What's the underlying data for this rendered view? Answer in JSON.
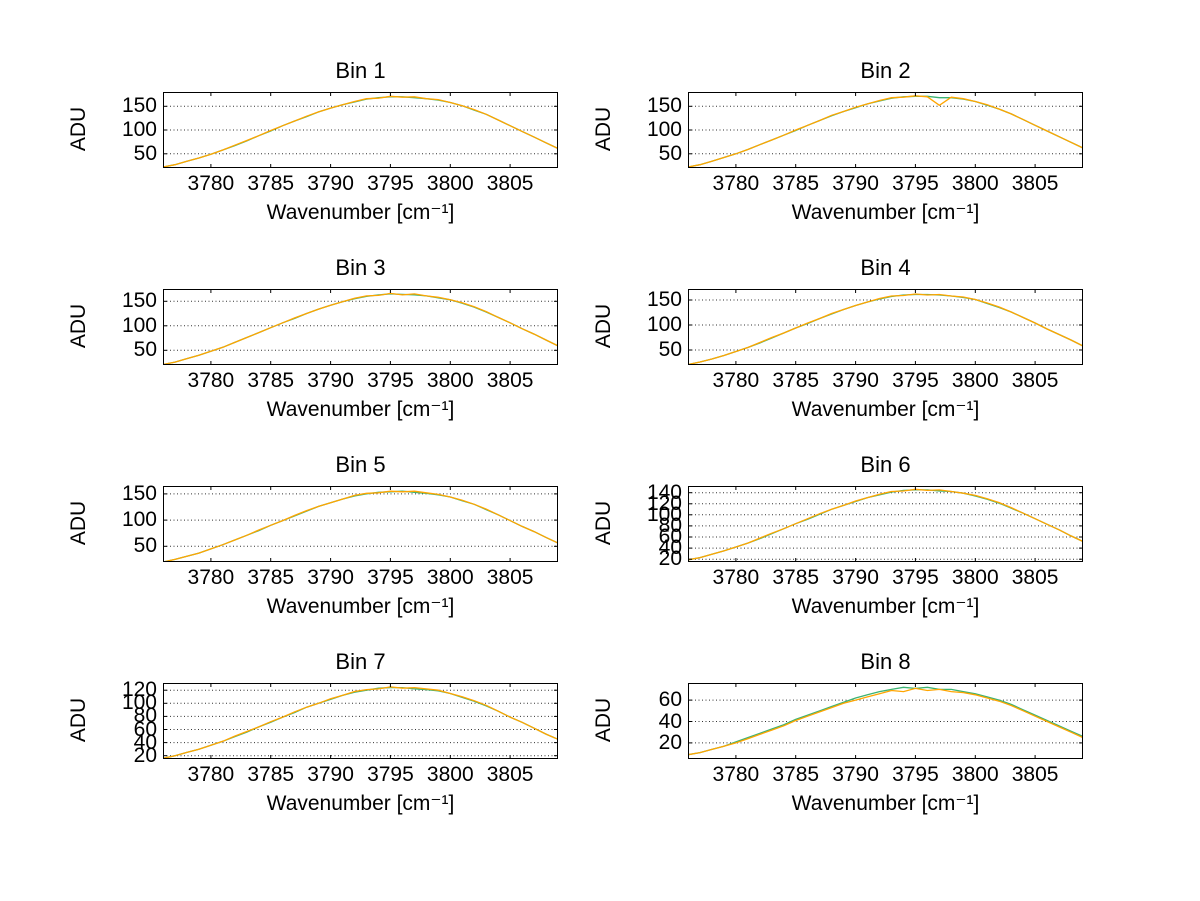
{
  "page": {
    "background": "#ffffff"
  },
  "chart_data": [
    {
      "type": "line",
      "title": "Bin 1",
      "xlabel": "Wavenumber [cm⁻¹]",
      "ylabel": "ADU",
      "xlim": [
        3776,
        3809
      ],
      "ylim": [
        20,
        180
      ],
      "xticks": [
        3780,
        3785,
        3790,
        3795,
        3800,
        3805
      ],
      "yticks": [
        50,
        100,
        150
      ],
      "grid": "horizontal-dotted",
      "legend": "none",
      "x": [
        3776,
        3777,
        3778,
        3779,
        3780,
        3781,
        3782,
        3783,
        3784,
        3785,
        3786,
        3787,
        3788,
        3789,
        3790,
        3791,
        3792,
        3793,
        3794,
        3795,
        3796,
        3797,
        3798,
        3799,
        3800,
        3801,
        3802,
        3803,
        3804,
        3805,
        3806,
        3807,
        3808,
        3809
      ],
      "series": [
        {
          "name": "trace-green",
          "color": "#3cb371",
          "values": [
            22,
            27,
            34,
            41,
            49,
            58,
            67,
            77,
            88,
            98,
            109,
            119,
            128,
            138,
            146,
            153,
            159,
            165,
            168,
            170,
            170,
            168,
            166,
            163,
            158,
            151,
            142,
            133,
            121,
            109,
            97,
            85,
            73,
            61
          ]
        },
        {
          "name": "trace-orange",
          "color": "#ffa500",
          "values": [
            22,
            27,
            34,
            41,
            49,
            58,
            68,
            78,
            88,
            99,
            109,
            119,
            129,
            138,
            146,
            153,
            160,
            166,
            167,
            171,
            169,
            170,
            166,
            164,
            158,
            151,
            143,
            133,
            121,
            109,
            97,
            85,
            73,
            61
          ]
        }
      ]
    },
    {
      "type": "line",
      "title": "Bin 2",
      "xlabel": "Wavenumber [cm⁻¹]",
      "ylabel": "ADU",
      "xlim": [
        3776,
        3809
      ],
      "ylim": [
        20,
        180
      ],
      "xticks": [
        3780,
        3785,
        3790,
        3795,
        3800,
        3805
      ],
      "yticks": [
        50,
        100,
        150
      ],
      "grid": "horizontal-dotted",
      "legend": "none",
      "x": [
        3776,
        3777,
        3778,
        3779,
        3780,
        3781,
        3782,
        3783,
        3784,
        3785,
        3786,
        3787,
        3788,
        3789,
        3790,
        3791,
        3792,
        3793,
        3794,
        3795,
        3796,
        3797,
        3798,
        3799,
        3800,
        3801,
        3802,
        3803,
        3804,
        3805,
        3806,
        3807,
        3808,
        3809
      ],
      "series": [
        {
          "name": "trace-green",
          "color": "#3cb371",
          "values": [
            22,
            27,
            34,
            42,
            50,
            59,
            69,
            79,
            89,
            99,
            110,
            120,
            130,
            139,
            147,
            155,
            161,
            167,
            170,
            171,
            171,
            168,
            168,
            165,
            160,
            152,
            144,
            134,
            122,
            110,
            98,
            86,
            74,
            62
          ]
        },
        {
          "name": "trace-orange",
          "color": "#ffa500",
          "values": [
            22,
            27,
            34,
            42,
            50,
            59,
            69,
            79,
            89,
            100,
            110,
            120,
            131,
            139,
            148,
            155,
            162,
            168,
            169,
            172,
            170,
            152,
            169,
            166,
            160,
            153,
            144,
            134,
            122,
            110,
            98,
            86,
            74,
            62
          ]
        }
      ]
    },
    {
      "type": "line",
      "title": "Bin 3",
      "xlabel": "Wavenumber [cm⁻¹]",
      "ylabel": "ADU",
      "xlim": [
        3776,
        3809
      ],
      "ylim": [
        20,
        175
      ],
      "xticks": [
        3780,
        3785,
        3790,
        3795,
        3800,
        3805
      ],
      "yticks": [
        50,
        100,
        150
      ],
      "grid": "horizontal-dotted",
      "legend": "none",
      "x": [
        3776,
        3777,
        3778,
        3779,
        3780,
        3781,
        3782,
        3783,
        3784,
        3785,
        3786,
        3787,
        3788,
        3789,
        3790,
        3791,
        3792,
        3793,
        3794,
        3795,
        3796,
        3797,
        3798,
        3799,
        3800,
        3801,
        3802,
        3803,
        3804,
        3805,
        3806,
        3807,
        3808,
        3809
      ],
      "series": [
        {
          "name": "trace-green",
          "color": "#3cb371",
          "values": [
            21,
            26,
            33,
            40,
            48,
            56,
            66,
            76,
            86,
            96,
            106,
            115,
            125,
            134,
            142,
            149,
            155,
            160,
            163,
            165,
            164,
            163,
            161,
            157,
            153,
            146,
            138,
            128,
            117,
            106,
            94,
            83,
            71,
            59
          ]
        },
        {
          "name": "trace-orange",
          "color": "#ffa500",
          "values": [
            21,
            26,
            33,
            40,
            48,
            56,
            66,
            76,
            86,
            96,
            106,
            116,
            125,
            134,
            142,
            149,
            156,
            161,
            162,
            166,
            163,
            165,
            161,
            158,
            153,
            147,
            139,
            129,
            117,
            106,
            94,
            83,
            71,
            59
          ]
        }
      ]
    },
    {
      "type": "line",
      "title": "Bin 4",
      "xlabel": "Wavenumber [cm⁻¹]",
      "ylabel": "ADU",
      "xlim": [
        3776,
        3809
      ],
      "ylim": [
        20,
        172
      ],
      "xticks": [
        3780,
        3785,
        3790,
        3795,
        3800,
        3805
      ],
      "yticks": [
        50,
        100,
        150
      ],
      "grid": "horizontal-dotted",
      "legend": "none",
      "x": [
        3776,
        3777,
        3778,
        3779,
        3780,
        3781,
        3782,
        3783,
        3784,
        3785,
        3786,
        3787,
        3788,
        3789,
        3790,
        3791,
        3792,
        3793,
        3794,
        3795,
        3796,
        3797,
        3798,
        3799,
        3800,
        3801,
        3802,
        3803,
        3804,
        3805,
        3806,
        3807,
        3808,
        3809
      ],
      "series": [
        {
          "name": "trace-green",
          "color": "#3cb371",
          "values": [
            21,
            26,
            32,
            39,
            47,
            55,
            64,
            74,
            84,
            94,
            103,
            113,
            122,
            131,
            139,
            146,
            152,
            157,
            160,
            161,
            161,
            160,
            158,
            155,
            151,
            143,
            135,
            126,
            115,
            104,
            92,
            81,
            70,
            58
          ]
        },
        {
          "name": "trace-orange",
          "color": "#ffa500",
          "values": [
            21,
            26,
            32,
            39,
            47,
            55,
            65,
            75,
            84,
            94,
            104,
            113,
            123,
            131,
            139,
            146,
            153,
            158,
            159,
            162,
            160,
            161,
            158,
            156,
            151,
            144,
            136,
            126,
            115,
            104,
            92,
            81,
            70,
            58
          ]
        }
      ]
    },
    {
      "type": "line",
      "title": "Bin 5",
      "xlabel": "Wavenumber [cm⁻¹]",
      "ylabel": "ADU",
      "xlim": [
        3776,
        3809
      ],
      "ylim": [
        20,
        165
      ],
      "xticks": [
        3780,
        3785,
        3790,
        3795,
        3800,
        3805
      ],
      "yticks": [
        50,
        100,
        150
      ],
      "grid": "horizontal-dotted",
      "legend": "none",
      "x": [
        3776,
        3777,
        3778,
        3779,
        3780,
        3781,
        3782,
        3783,
        3784,
        3785,
        3786,
        3787,
        3788,
        3789,
        3790,
        3791,
        3792,
        3793,
        3794,
        3795,
        3796,
        3797,
        3798,
        3799,
        3800,
        3801,
        3802,
        3803,
        3804,
        3805,
        3806,
        3807,
        3808,
        3809
      ],
      "series": [
        {
          "name": "trace-green",
          "color": "#3cb371",
          "values": [
            20,
            25,
            31,
            37,
            45,
            53,
            62,
            71,
            80,
            90,
            99,
            108,
            117,
            126,
            133,
            140,
            146,
            150,
            153,
            154,
            155,
            153,
            151,
            148,
            144,
            137,
            130,
            120,
            110,
            99,
            88,
            78,
            67,
            56
          ]
        },
        {
          "name": "trace-orange",
          "color": "#ffa500",
          "values": [
            20,
            25,
            31,
            37,
            45,
            53,
            62,
            71,
            81,
            90,
            99,
            109,
            118,
            126,
            133,
            140,
            147,
            151,
            152,
            155,
            154,
            155,
            152,
            149,
            144,
            138,
            130,
            121,
            110,
            99,
            88,
            78,
            67,
            56
          ]
        }
      ]
    },
    {
      "type": "line",
      "title": "Bin 6",
      "xlabel": "Wavenumber [cm⁻¹]",
      "ylabel": "ADU",
      "xlim": [
        3776,
        3809
      ],
      "ylim": [
        15,
        152
      ],
      "xticks": [
        3780,
        3785,
        3790,
        3795,
        3800,
        3805
      ],
      "yticks": [
        20,
        40,
        60,
        80,
        100,
        120,
        140
      ],
      "grid": "horizontal-dotted",
      "legend": "none",
      "x": [
        3776,
        3777,
        3778,
        3779,
        3780,
        3781,
        3782,
        3783,
        3784,
        3785,
        3786,
        3787,
        3788,
        3789,
        3790,
        3791,
        3792,
        3793,
        3794,
        3795,
        3796,
        3797,
        3798,
        3799,
        3800,
        3801,
        3802,
        3803,
        3804,
        3805,
        3806,
        3807,
        3808,
        3809
      ],
      "series": [
        {
          "name": "trace-green",
          "color": "#3cb371",
          "values": [
            19,
            23,
            29,
            35,
            42,
            49,
            57,
            66,
            75,
            84,
            92,
            101,
            110,
            117,
            124,
            131,
            136,
            141,
            144,
            145,
            145,
            143,
            142,
            139,
            134,
            128,
            121,
            112,
            103,
            93,
            83,
            73,
            62,
            52
          ]
        },
        {
          "name": "trace-orange",
          "color": "#ffa500",
          "values": [
            19,
            23,
            29,
            35,
            42,
            49,
            58,
            67,
            75,
            84,
            93,
            102,
            110,
            117,
            125,
            131,
            137,
            142,
            143,
            146,
            144,
            145,
            142,
            139,
            135,
            129,
            122,
            113,
            103,
            93,
            83,
            73,
            62,
            52
          ]
        }
      ]
    },
    {
      "type": "line",
      "title": "Bin 7",
      "xlabel": "Wavenumber [cm⁻¹]",
      "ylabel": "ADU",
      "xlim": [
        3776,
        3809
      ],
      "ylim": [
        15,
        131
      ],
      "xticks": [
        3780,
        3785,
        3790,
        3795,
        3800,
        3805
      ],
      "yticks": [
        20,
        40,
        60,
        80,
        100,
        120
      ],
      "grid": "horizontal-dotted",
      "legend": "none",
      "x": [
        3776,
        3777,
        3778,
        3779,
        3780,
        3781,
        3782,
        3783,
        3784,
        3785,
        3786,
        3787,
        3788,
        3789,
        3790,
        3791,
        3792,
        3793,
        3794,
        3795,
        3796,
        3797,
        3798,
        3799,
        3800,
        3801,
        3802,
        3803,
        3804,
        3805,
        3806,
        3807,
        3808,
        3809
      ],
      "series": [
        {
          "name": "trace-green",
          "color": "#3cb371",
          "values": [
            16,
            20,
            25,
            30,
            36,
            42,
            49,
            56,
            64,
            71,
            79,
            86,
            94,
            100,
            106,
            112,
            117,
            120,
            123,
            124,
            124,
            122,
            121,
            119,
            115,
            109,
            103,
            96,
            88,
            79,
            71,
            62,
            53,
            45
          ]
        },
        {
          "name": "trace-orange",
          "color": "#ffa500",
          "values": [
            16,
            20,
            25,
            30,
            36,
            42,
            50,
            57,
            64,
            72,
            79,
            87,
            94,
            100,
            107,
            112,
            118,
            121,
            122,
            125,
            123,
            124,
            122,
            120,
            115,
            110,
            104,
            97,
            88,
            79,
            71,
            62,
            53,
            45
          ]
        }
      ]
    },
    {
      "type": "line",
      "title": "Bin 8",
      "xlabel": "Wavenumber [cm⁻¹]",
      "ylabel": "ADU",
      "xlim": [
        3776,
        3809
      ],
      "ylim": [
        5,
        76
      ],
      "xticks": [
        3780,
        3785,
        3790,
        3795,
        3800,
        3805
      ],
      "yticks": [
        20,
        40,
        60
      ],
      "grid": "horizontal-dotted",
      "legend": "none",
      "x": [
        3776,
        3777,
        3778,
        3779,
        3780,
        3781,
        3782,
        3783,
        3784,
        3785,
        3786,
        3787,
        3788,
        3789,
        3790,
        3791,
        3792,
        3793,
        3794,
        3795,
        3796,
        3797,
        3798,
        3799,
        3800,
        3801,
        3802,
        3803,
        3804,
        3805,
        3806,
        3807,
        3808,
        3809
      ],
      "series": [
        {
          "name": "trace-green",
          "color": "#3cb371",
          "values": [
            9,
            11,
            14,
            17,
            21,
            25,
            29,
            33,
            37,
            42,
            46,
            50,
            54,
            58,
            62,
            65,
            68,
            70,
            72,
            71,
            72,
            70,
            70,
            68,
            66,
            63,
            60,
            56,
            51,
            46,
            41,
            36,
            31,
            26
          ]
        },
        {
          "name": "trace-orange",
          "color": "#ffa500",
          "values": [
            9,
            11,
            14,
            17,
            20,
            24,
            28,
            32,
            36,
            41,
            45,
            49,
            53,
            57,
            60,
            63,
            66,
            69,
            68,
            71,
            69,
            70,
            68,
            67,
            65,
            62,
            59,
            55,
            50,
            45,
            40,
            35,
            30,
            25
          ]
        }
      ]
    }
  ]
}
